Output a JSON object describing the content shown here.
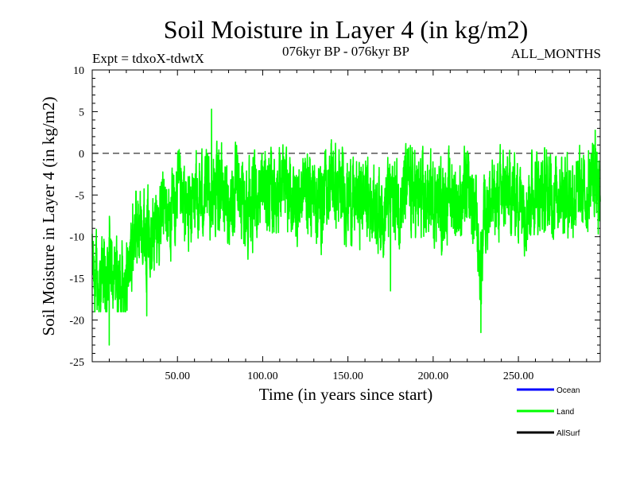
{
  "chart_data": {
    "type": "line",
    "title": "Soil Moisture in Layer 4 (in kg/m2)",
    "subtitle_left": "Expt = tdxoX-tdwtX",
    "subtitle_center": "076kyr BP - 076kyr BP",
    "subtitle_right": "ALL_MONTHS",
    "xlabel": "Time (in years since start)",
    "ylabel": "Soil Moisture in Layer 4 (in kg/m2)",
    "xlim": [
      0,
      298
    ],
    "ylim": [
      -25,
      10
    ],
    "x_ticks": [
      50,
      100,
      150,
      200,
      250
    ],
    "x_tick_labels": [
      "50.00",
      "100.00",
      "150.00",
      "200.00",
      "250.00"
    ],
    "y_ticks": [
      -25,
      -20,
      -15,
      -10,
      -5,
      0,
      5,
      10
    ],
    "y_tick_labels": [
      "-25",
      "-20",
      "-15",
      "-10",
      "-5",
      "0",
      "5",
      "10"
    ],
    "reference_line": 0,
    "series": [
      {
        "name": "Land",
        "color": "#00ff00",
        "n_points": 3576,
        "sample_x": [
          0,
          2,
          4,
          6,
          8,
          10,
          12,
          14,
          16,
          18,
          20,
          22,
          25,
          28,
          30,
          32,
          34,
          36,
          38,
          40,
          42,
          45,
          48,
          50,
          55,
          60,
          65,
          70,
          75,
          80,
          85,
          90,
          95,
          100,
          105,
          110,
          115,
          120,
          125,
          130,
          135,
          140,
          145,
          150,
          155,
          160,
          165,
          170,
          175,
          180,
          185,
          190,
          195,
          200,
          205,
          210,
          215,
          220,
          225,
          228,
          230,
          235,
          240,
          245,
          250,
          255,
          260,
          265,
          270,
          275,
          280,
          285,
          290,
          295,
          298
        ],
        "sample_y": [
          -13,
          -15,
          -17,
          -14,
          -18,
          -12,
          -16,
          -15,
          -16,
          -14,
          -15,
          -13,
          -9,
          -9,
          -8,
          -10,
          -8,
          -10,
          -8,
          -9,
          -6,
          -8,
          -7,
          -5,
          -7,
          -6,
          -5,
          -5,
          -4,
          -6,
          -5,
          -6,
          -6,
          -4,
          -5,
          -4,
          -5,
          -6,
          -4,
          -5,
          -6,
          -3,
          -5,
          -5,
          -6,
          -5,
          -6,
          -7,
          -5,
          -6,
          -4,
          -5,
          -6,
          -5,
          -6,
          -5,
          -6,
          -5,
          -7,
          -15,
          -6,
          -6,
          -5,
          -5,
          -5,
          -6,
          -4,
          -5,
          -5,
          -4,
          -5,
          -5,
          -5,
          -2,
          -8
        ],
        "min_y": -23.0,
        "min_x": 10,
        "max_y": 5.3,
        "max_x": 70,
        "notable_lows": [
          {
            "x": 10,
            "y": -23
          },
          {
            "x": 32,
            "y": -19.5
          },
          {
            "x": 228,
            "y": -21.5
          },
          {
            "x": 175,
            "y": -16.5
          }
        ]
      }
    ],
    "legend": [
      {
        "label": "Ocean",
        "color": "#0000ff"
      },
      {
        "label": "Land",
        "color": "#00ff00"
      },
      {
        "label": "AllSurf",
        "color": "#000000"
      }
    ]
  }
}
